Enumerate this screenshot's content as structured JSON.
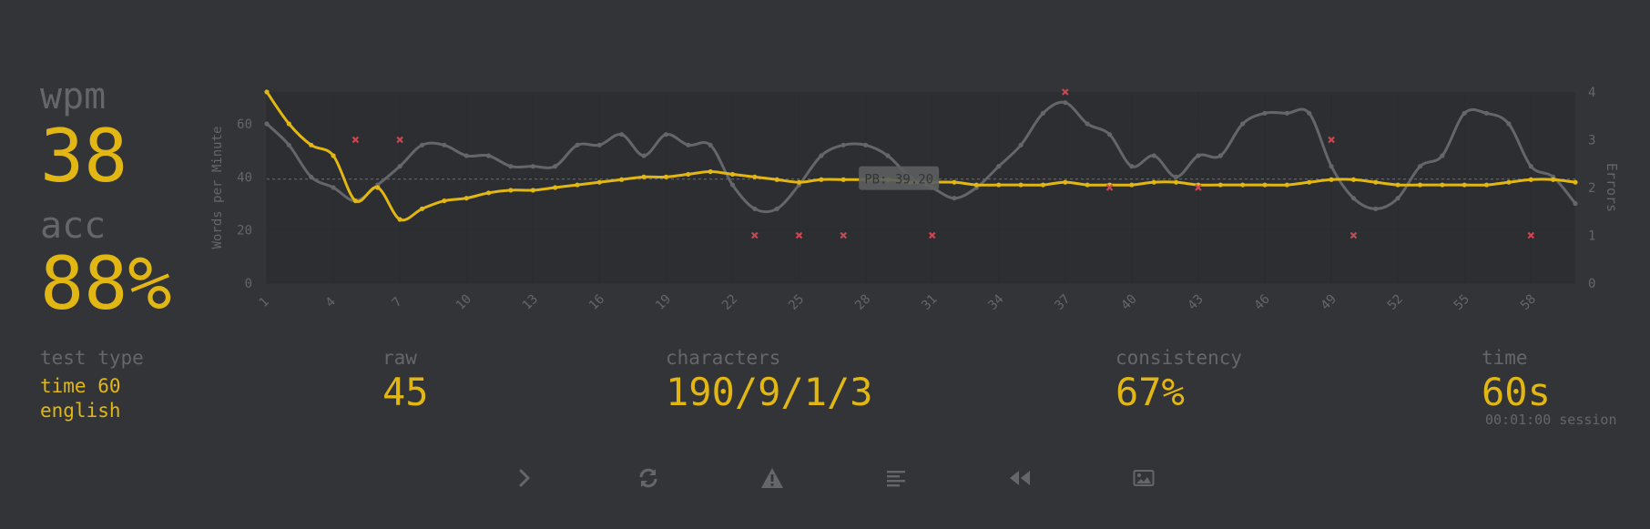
{
  "stats": {
    "wpm_label": "wpm",
    "wpm": "38",
    "acc_label": "acc",
    "acc": "88%"
  },
  "details": {
    "test_type_label": "test type",
    "test_type_line1": "time 60",
    "test_type_line2": "english",
    "raw_label": "raw",
    "raw": "45",
    "characters_label": "characters",
    "characters": "190/9/1/3",
    "consistency_label": "consistency",
    "consistency": "67%",
    "time_label": "time",
    "time": "60s",
    "session": "00:01:00 session"
  },
  "buttons": [
    {
      "name": "next-test-button",
      "icon": "chevron-right-icon"
    },
    {
      "name": "restart-test-button",
      "icon": "sync-icon"
    },
    {
      "name": "report-button",
      "icon": "warning-icon"
    },
    {
      "name": "words-history-button",
      "icon": "align-left-icon"
    },
    {
      "name": "replay-button",
      "icon": "backward-icon"
    },
    {
      "name": "save-screenshot-button",
      "icon": "image-icon"
    }
  ],
  "colors": {
    "background": "#323437",
    "main": "#e2b714",
    "sub": "#646669",
    "error": "#ca4754"
  },
  "chart_data": {
    "type": "line",
    "ylabel": "Words per Minute",
    "y2label": "Errors",
    "ylim": [
      0,
      72
    ],
    "y2lim": [
      0,
      4
    ],
    "yticks": [
      0,
      20,
      40,
      60
    ],
    "y2ticks": [
      0,
      1,
      2,
      3,
      4
    ],
    "x": [
      1,
      2,
      3,
      4,
      5,
      6,
      7,
      8,
      9,
      10,
      11,
      12,
      13,
      14,
      15,
      16,
      17,
      18,
      19,
      20,
      21,
      22,
      23,
      24,
      25,
      26,
      27,
      28,
      29,
      30,
      31,
      32,
      33,
      34,
      35,
      36,
      37,
      38,
      39,
      40,
      41,
      42,
      43,
      44,
      45,
      46,
      47,
      48,
      49,
      50,
      51,
      52,
      53,
      54,
      55,
      56,
      57,
      58,
      59,
      60
    ],
    "xticks": [
      "1",
      "4",
      "7",
      "10",
      "13",
      "16",
      "19",
      "22",
      "25",
      "28",
      "31",
      "34",
      "37",
      "40",
      "43",
      "46",
      "49",
      "52",
      "55",
      "58"
    ],
    "annotation": "PB: 39.20",
    "annotation_value": 39.2,
    "series": [
      {
        "role": "wpm",
        "color": "#e2b714",
        "values": [
          72,
          60,
          52,
          48,
          31,
          36,
          24,
          28,
          31,
          32,
          34,
          35,
          35,
          36,
          37,
          38,
          39,
          40,
          40,
          41,
          42,
          41,
          40,
          39,
          38,
          39,
          39,
          39,
          39,
          38,
          38,
          38,
          37,
          37,
          37,
          37,
          38,
          37,
          37,
          37,
          38,
          38,
          37,
          37,
          37,
          37,
          37,
          38,
          39,
          39,
          38,
          37,
          37,
          37,
          37,
          37,
          38,
          39,
          39,
          38
        ]
      },
      {
        "role": "raw",
        "color": "#646669",
        "values": [
          60,
          52,
          40,
          36,
          31,
          37,
          44,
          52,
          52,
          48,
          48,
          44,
          44,
          44,
          52,
          52,
          56,
          48,
          56,
          52,
          52,
          37,
          28,
          28,
          37,
          48,
          52,
          52,
          48,
          40,
          36,
          32,
          36,
          44,
          52,
          64,
          68,
          60,
          56,
          44,
          48,
          40,
          48,
          48,
          60,
          64,
          64,
          64,
          44,
          32,
          28,
          32,
          44,
          48,
          64,
          64,
          60,
          44,
          40,
          30
        ]
      }
    ],
    "errors": [
      {
        "x": 5,
        "count": 3
      },
      {
        "x": 7,
        "count": 3
      },
      {
        "x": 23,
        "count": 1
      },
      {
        "x": 25,
        "count": 1
      },
      {
        "x": 27,
        "count": 1
      },
      {
        "x": 31,
        "count": 1
      },
      {
        "x": 37,
        "count": 4
      },
      {
        "x": 39,
        "count": 2
      },
      {
        "x": 43,
        "count": 2
      },
      {
        "x": 49,
        "count": 3
      },
      {
        "x": 50,
        "count": 1
      },
      {
        "x": 58,
        "count": 1
      }
    ],
    "grid": true,
    "legend": "none"
  }
}
